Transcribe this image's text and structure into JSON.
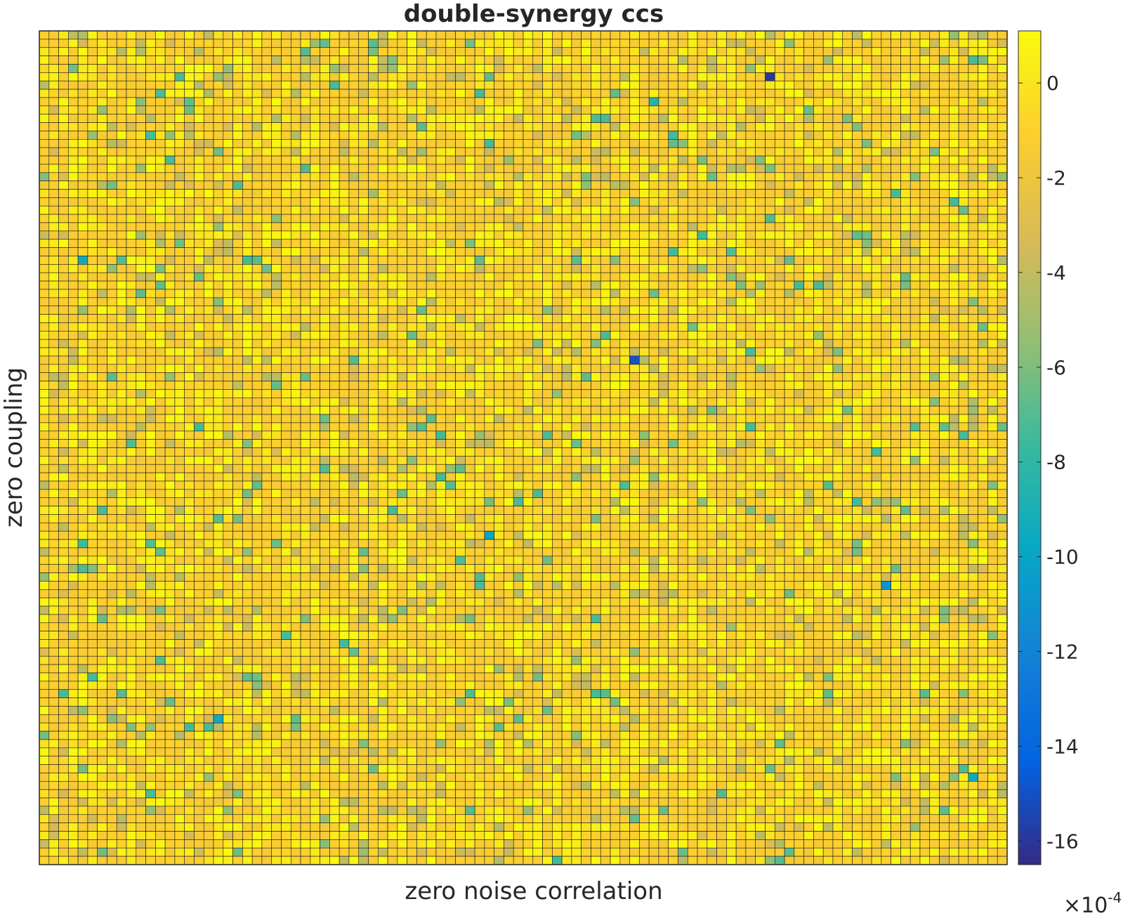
{
  "chart_data": {
    "type": "heatmap",
    "title": "double-synergy ccs",
    "xlabel": "zero noise correlation",
    "ylabel": "zero coupling",
    "grid_rows": 100,
    "grid_cols": 100,
    "colorbar": {
      "colormap": "parula",
      "clim": [
        -16.5,
        1.1
      ],
      "ticks": [
        0,
        -2,
        -4,
        -6,
        -8,
        -10,
        -12,
        -14,
        -16
      ],
      "tick_labels": [
        "0",
        "-2",
        "-4",
        "-6",
        "-8",
        "-10",
        "-12",
        "-14",
        "-16"
      ],
      "exponent_base": "×10",
      "exponent_power": "-4"
    },
    "value_distribution": {
      "typical_range": [
        -2.5,
        1.0
      ],
      "background_value": -1,
      "outliers": [
        {
          "row": 5,
          "col": 75,
          "value": -16.0
        },
        {
          "row": 39,
          "col": 61,
          "value": -15.0
        },
        {
          "row": 66,
          "col": 87,
          "value": -11.0
        },
        {
          "row": 60,
          "col": 46,
          "value": -10.0
        },
        {
          "row": 27,
          "col": 4,
          "value": -9.5
        },
        {
          "row": 82,
          "col": 18,
          "value": -9.5
        },
        {
          "row": 89,
          "col": 96,
          "value": -9.5
        },
        {
          "row": 8,
          "col": 63,
          "value": -8.5
        }
      ]
    }
  }
}
